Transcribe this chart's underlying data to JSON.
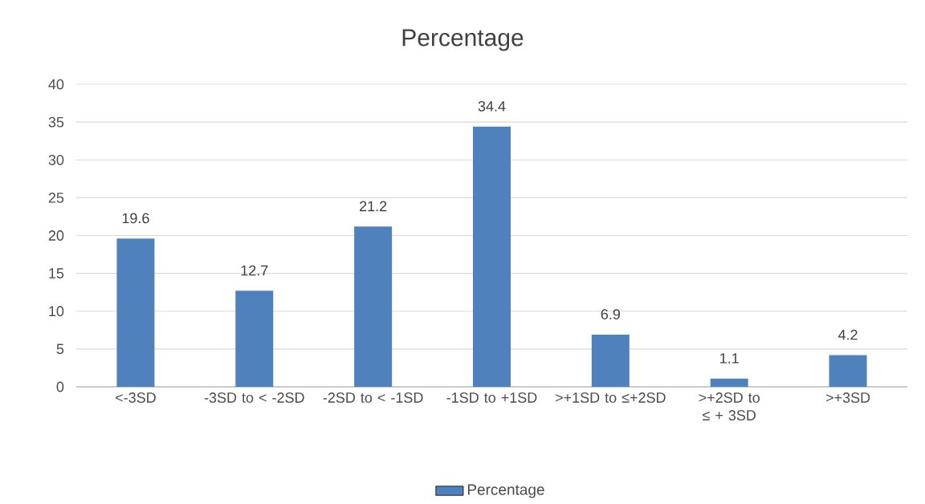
{
  "chart_data": {
    "type": "bar",
    "title": "Percentage",
    "categories": [
      "<-3SD",
      "-3SD to < -2SD",
      "-2SD to < -1SD",
      "-1SD to +1SD",
      ">+1SD to ≤+2SD",
      ">+2SD to ≤ + 3SD",
      ">+3SD"
    ],
    "series": [
      {
        "name": "Percentage",
        "color": "#4f81bd",
        "values": [
          19.6,
          12.7,
          21.2,
          34.4,
          6.9,
          1.1,
          4.2
        ]
      }
    ],
    "ylim": [
      0,
      40
    ],
    "yticks": [
      0,
      5,
      10,
      15,
      20,
      25,
      30,
      35,
      40
    ],
    "grid": "y",
    "legend": "bottom",
    "data_labels": true
  }
}
